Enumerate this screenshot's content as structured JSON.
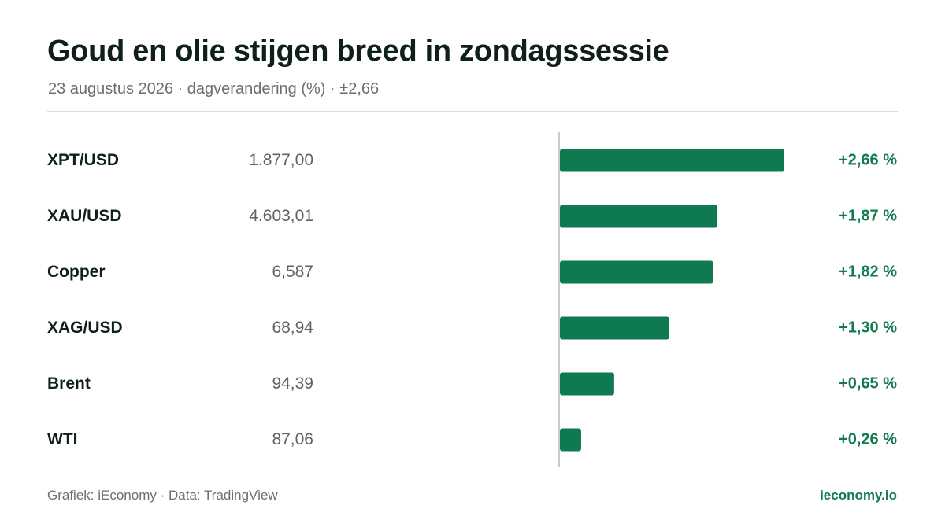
{
  "header": {
    "title": "Goud en olie stijgen breed in zondagssessie",
    "subtitle": "23 augustus 2026 · dagverandering (%) · ±2,66"
  },
  "footer": {
    "source": "Grafiek: iEconomy · Data: TradingView",
    "brand": "ieconomy.io"
  },
  "colors": {
    "bar": "#0f7a4f",
    "positive_text": "#137a4f",
    "axis": "#c9cccb"
  },
  "chart_data": {
    "type": "bar",
    "orientation": "horizontal",
    "title": "Goud en olie stijgen breed in zondagssessie",
    "subtitle": "23 augustus 2026 · dagverandering (%) · ±2,66",
    "categories": [
      "XPT/USD",
      "XAU/USD",
      "Copper",
      "XAG/USD",
      "Brent",
      "WTI"
    ],
    "prices": [
      "1.877,00",
      "4.603,01",
      "6,587",
      "68,94",
      "94,39",
      "87,06"
    ],
    "values": [
      2.66,
      1.87,
      1.82,
      1.3,
      0.65,
      0.26
    ],
    "value_labels": [
      "+2,66 %",
      "+1,87 %",
      "+1,82 %",
      "+1,30 %",
      "+0,65 %",
      "+0,26 %"
    ],
    "xlim": [
      -2.66,
      2.66
    ]
  }
}
